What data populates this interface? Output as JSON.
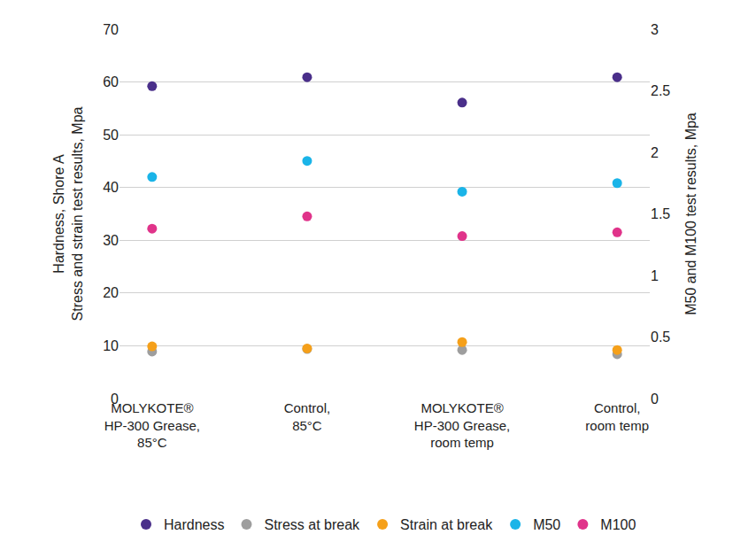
{
  "chart_data": {
    "type": "scatter",
    "y_label": "Hardness, Shore A\nStress and strain test results, Mpa",
    "y2_label": "M50 and M100 test results, Mpa",
    "categories": [
      "MOLYKOTE®\nHP-300 Grease,\n85°C",
      "Control,\n85°C",
      "MOLYKOTE®\nHP-300 Grease,\nroom temp",
      "Control,\nroom temp"
    ],
    "series": [
      {
        "name": "Hardness",
        "color": "#4a2f8a",
        "values": [
          59.2,
          60.9,
          56.1,
          60.9
        ]
      },
      {
        "name": "Stress at break",
        "color": "#9e9e9e",
        "values": [
          8.9,
          9.4,
          9.2,
          8.4
        ]
      },
      {
        "name": "Strain at break",
        "color": "#f5a01a",
        "values": [
          9.9,
          9.5,
          10.7,
          9.2
        ]
      },
      {
        "name": "M50",
        "color": "#1ab4e8",
        "values": [
          1.8,
          1.93,
          1.68,
          1.75
        ],
        "axis": "y2"
      },
      {
        "name": "M100",
        "color": "#e0338a",
        "values": [
          1.38,
          1.48,
          1.32,
          1.35
        ],
        "axis": "y2"
      }
    ],
    "ylim": [
      0,
      70
    ],
    "yticks": [
      0,
      10,
      20,
      30,
      40,
      50,
      60,
      70
    ],
    "y2lim": [
      0,
      3
    ],
    "y2ticks": [
      0,
      0.5,
      1,
      1.5,
      2,
      2.5,
      3
    ],
    "grid": true,
    "legend": "bottom",
    "marker": "circle"
  }
}
